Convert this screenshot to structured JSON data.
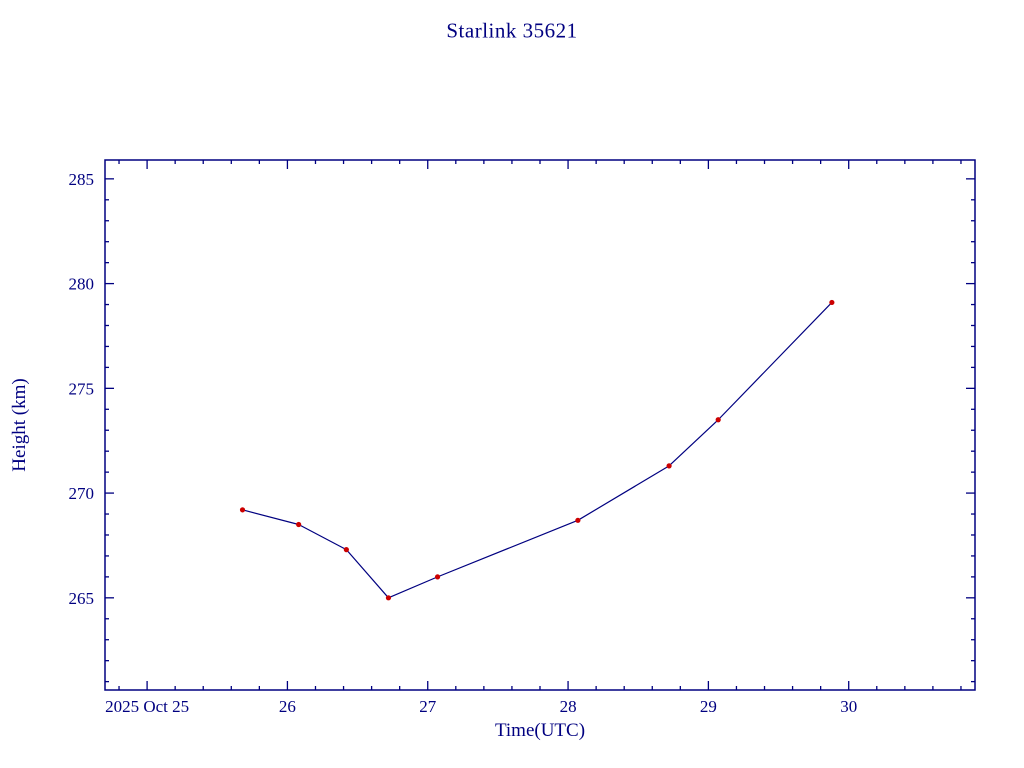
{
  "page": {
    "background": "#ffffff"
  },
  "colors": {
    "axis": "#000080",
    "text": "#000080",
    "line": "#000080",
    "marker": "#cc0000"
  },
  "chart_data": {
    "type": "line",
    "title": "Starlink 35621",
    "xlabel": "Time(UTC)",
    "ylabel": "Height (km)",
    "xlim": [
      24.7,
      30.9
    ],
    "ylim": [
      260.6,
      285.9
    ],
    "grid": false,
    "legend": "none",
    "x_minor_step": 0.2,
    "y_minor_step": 1,
    "x_ticks": [
      {
        "value": 25,
        "label": "2025 Oct 25"
      },
      {
        "value": 26,
        "label": "26"
      },
      {
        "value": 27,
        "label": "27"
      },
      {
        "value": 28,
        "label": "28"
      },
      {
        "value": 29,
        "label": "29"
      },
      {
        "value": 30,
        "label": "30"
      }
    ],
    "y_ticks": [
      {
        "value": 265,
        "label": "265"
      },
      {
        "value": 270,
        "label": "270"
      },
      {
        "value": 275,
        "label": "275"
      },
      {
        "value": 280,
        "label": "280"
      },
      {
        "value": 285,
        "label": "285"
      }
    ],
    "series": [
      {
        "name": "height",
        "marker": "dot",
        "x": [
          25.68,
          26.08,
          26.42,
          26.72,
          27.07,
          28.07,
          28.72,
          29.07,
          29.88
        ],
        "y": [
          269.2,
          268.5,
          267.3,
          265.0,
          266.0,
          268.7,
          271.3,
          273.5,
          279.1
        ]
      }
    ]
  }
}
